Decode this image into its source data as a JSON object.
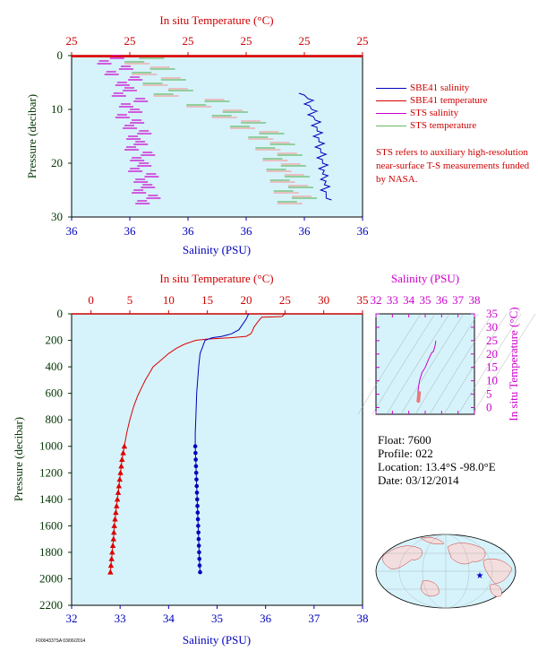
{
  "colors": {
    "background": "#d6f3fb",
    "salinity": "#0000bb",
    "temperature": "#dd0000",
    "sts_salinity": "#cc00cc",
    "sts_temperature": "#66bb66",
    "sts_temperature_light": "#f2a0a0",
    "axis_dark": "#003300",
    "axis_red": "#cc0000",
    "axis_magenta": "#cc00cc"
  },
  "info": {
    "float": "Float:  7600",
    "profile": "Profile:  022",
    "location": "Location:  13.4°S  -98.0°E",
    "date": "Date:  03/12/2014"
  },
  "legend": {
    "items": [
      {
        "label": "SBE41 salinity",
        "color": "#0000bb"
      },
      {
        "label": "SBE41 temperature",
        "color": "#dd0000"
      },
      {
        "label": "STS salinity",
        "color": "#cc00cc"
      },
      {
        "label": "STS temperature",
        "color": "#66bb66"
      }
    ],
    "note": "STS refers to auxiliary high-resolution near-surface T-S measurements funded by NASA."
  },
  "footer_text": "F0004337SA 03/06/2014",
  "chart_data": [
    {
      "id": "top",
      "type": "line",
      "top_axis_label": "In situ Temperature (°C)",
      "bottom_axis_label": "Salinity (PSU)",
      "left_axis_label": "Pressure (decibar)",
      "top_ticks": [
        "25",
        "25",
        "25",
        "25",
        "25",
        "25"
      ],
      "bottom_ticks": [
        "36",
        "36",
        "36",
        "36",
        "36",
        "36"
      ],
      "left_ticks": [
        "0",
        "10",
        "20",
        "30"
      ],
      "ylim": [
        30,
        0
      ],
      "xlim_temperature": [
        24.8,
        25.6
      ],
      "xlim_salinity": [
        35.96,
        36.12
      ],
      "series": [
        {
          "name": "STS salinity",
          "color": "#cc00cc",
          "x": [
            35.985,
            35.978,
            35.99,
            35.982,
            35.995,
            35.988,
            35.992,
            35.986,
            35.998,
            35.99,
            35.995,
            35.988,
            35.996,
            35.992,
            36.0,
            35.994,
            35.998,
            35.993,
            36.002,
            35.996,
            36.0,
            35.995,
            36.004,
            35.998,
            36.002,
            35.997,
            36.005,
            35.999
          ],
          "y": [
            0.5,
            1.5,
            2.5,
            3.5,
            4.5,
            5.5,
            6.5,
            7.5,
            8.5,
            9.5,
            10.5,
            11.5,
            12.5,
            13.5,
            14.5,
            15.5,
            16.5,
            17.5,
            18.5,
            19.5,
            20.5,
            21.5,
            22.5,
            23.5,
            24.5,
            25.5,
            26.5,
            27.5
          ]
        },
        {
          "name": "STS temperature",
          "color": "#66bb66",
          "x": [
            25.02,
            24.98,
            25.05,
            25.0,
            25.08,
            25.03,
            25.1,
            25.06,
            25.2,
            25.15,
            25.25,
            25.22,
            25.3,
            25.27,
            25.35,
            25.32,
            25.38,
            25.34,
            25.4,
            25.36,
            25.41,
            25.37,
            25.42,
            25.38,
            25.43,
            25.39,
            25.44,
            25.4
          ],
          "y": [
            0.5,
            1.5,
            2.5,
            3.5,
            4.5,
            5.5,
            6.5,
            7.5,
            8.5,
            9.5,
            10.5,
            11.5,
            12.5,
            13.5,
            14.5,
            15.5,
            16.5,
            17.5,
            18.5,
            19.5,
            20.5,
            21.5,
            22.5,
            23.5,
            24.5,
            25.5,
            26.5,
            27.5
          ]
        },
        {
          "name": "SBE41 salinity",
          "color": "#0000bb",
          "x": [
            36.085,
            36.09,
            36.088,
            36.092,
            36.09,
            36.094,
            36.092,
            36.095,
            36.093,
            36.096,
            36.094,
            36.097,
            36.095,
            36.098,
            36.096,
            36.098,
            36.097,
            36.099,
            36.097,
            36.1
          ],
          "y": [
            7,
            8,
            9,
            10,
            11,
            12,
            13,
            14,
            15,
            16,
            17,
            18,
            19,
            20,
            21,
            22,
            23,
            24,
            25,
            26.5
          ]
        },
        {
          "name": "SBE41 temperature",
          "color": "#dd0000",
          "x": [
            25.6,
            24.8
          ],
          "y": [
            0,
            0
          ]
        }
      ]
    },
    {
      "id": "main",
      "type": "line",
      "top_axis_label": "In situ Temperature (°C)",
      "bottom_axis_label": "Salinity (PSU)",
      "left_axis_label": "Pressure (decibar)",
      "top_ticks": [
        "0",
        "5",
        "10",
        "15",
        "20",
        "25",
        "30",
        "35"
      ],
      "bottom_ticks": [
        "32",
        "33",
        "34",
        "35",
        "36",
        "37",
        "38"
      ],
      "left_ticks": [
        "0",
        "200",
        "400",
        "600",
        "800",
        "1000",
        "1200",
        "1400",
        "1600",
        "1800",
        "2000",
        "2200"
      ],
      "xlim_temperature": [
        -2.5,
        35
      ],
      "xlim_salinity": [
        32,
        38
      ],
      "ylim": [
        2200,
        0
      ],
      "series": [
        {
          "name": "SBE41 temperature",
          "color": "#dd0000",
          "x": [
            25.0,
            24.6,
            22.0,
            21.5,
            21.0,
            20.8,
            20.6,
            20.0,
            18.0,
            15.0,
            13.5,
            12.0,
            11.0,
            10.0,
            9.0,
            8.0,
            7.5,
            7.0,
            6.5,
            6.0,
            5.5,
            5.0,
            4.6,
            4.3,
            4.0,
            3.8,
            3.6,
            3.4,
            3.2,
            3.0,
            2.9,
            2.8,
            2.7,
            2.6,
            2.5
          ],
          "y": [
            0,
            20,
            25,
            60,
            100,
            130,
            150,
            170,
            180,
            190,
            200,
            230,
            260,
            300,
            350,
            400,
            450,
            500,
            560,
            620,
            700,
            800,
            900,
            1000,
            1100,
            1200,
            1300,
            1400,
            1500,
            1600,
            1700,
            1760,
            1820,
            1880,
            1950
          ]
        },
        {
          "name": "SBE41 salinity",
          "color": "#0000bb",
          "x": [
            35.65,
            35.6,
            35.45,
            35.3,
            35.1,
            34.9,
            34.75,
            34.7,
            34.65,
            34.62,
            34.6,
            34.58,
            34.57,
            34.56,
            34.55,
            34.55,
            34.56,
            34.57,
            34.58,
            34.59,
            34.6,
            34.61,
            34.62,
            34.63,
            34.64,
            34.65
          ],
          "y": [
            0,
            40,
            120,
            150,
            170,
            180,
            200,
            250,
            300,
            400,
            500,
            600,
            700,
            800,
            900,
            1000,
            1100,
            1200,
            1300,
            1400,
            1500,
            1600,
            1700,
            1800,
            1900,
            1950
          ]
        }
      ],
      "markers": {
        "temperature_y": [
          1000,
          1050,
          1100,
          1150,
          1200,
          1250,
          1300,
          1350,
          1400,
          1450,
          1500,
          1550,
          1600,
          1650,
          1700,
          1750,
          1800,
          1850,
          1900,
          1950
        ],
        "salinity_y": [
          1000,
          1050,
          1100,
          1150,
          1200,
          1250,
          1300,
          1350,
          1400,
          1450,
          1500,
          1550,
          1600,
          1650,
          1700,
          1750,
          1800,
          1850,
          1900,
          1950
        ]
      }
    },
    {
      "id": "ts",
      "type": "line",
      "top_axis_label": "Salinity (PSU)",
      "right_axis_label": "In situ Temperature (°C)",
      "top_ticks": [
        "32",
        "33",
        "34",
        "35",
        "36",
        "37",
        "38"
      ],
      "right_ticks": [
        "0",
        "5",
        "10",
        "15",
        "20",
        "25",
        "30",
        "35"
      ],
      "xlim": [
        32,
        38
      ],
      "ylim": [
        -2.5,
        35
      ],
      "series": [
        {
          "name": "T-S",
          "color": "#cc00cc",
          "x": [
            35.65,
            35.6,
            35.5,
            35.4,
            35.2,
            35.0,
            34.8,
            34.7,
            34.65,
            34.6,
            34.58,
            34.56,
            34.55,
            34.58,
            34.62,
            34.65
          ],
          "y": [
            25,
            23,
            21,
            20.5,
            18,
            15,
            13,
            11,
            10,
            8,
            7,
            6,
            5,
            4,
            3,
            2.5
          ]
        }
      ]
    }
  ]
}
